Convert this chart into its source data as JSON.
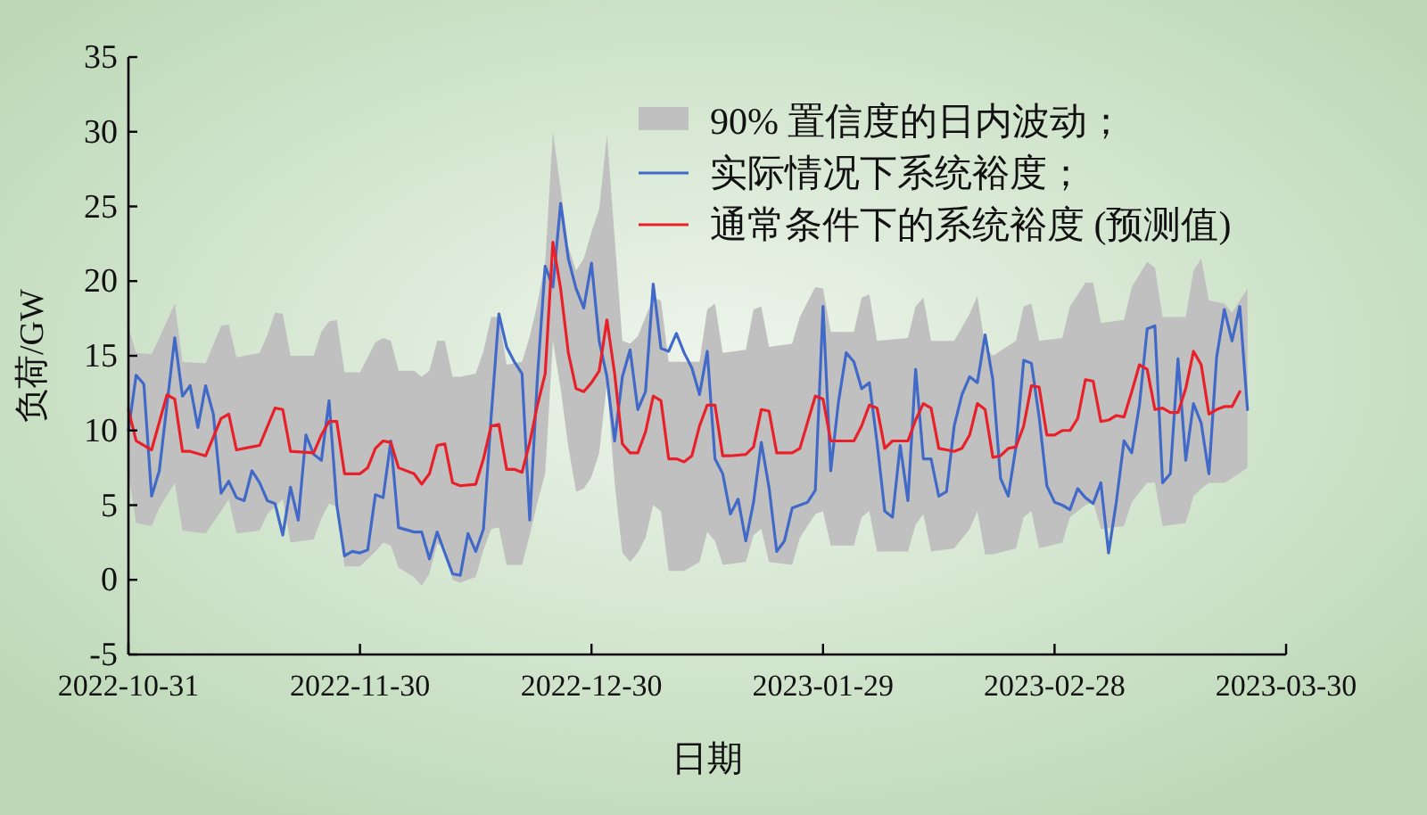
{
  "chart_data": {
    "type": "line",
    "xlabel": "日期",
    "ylabel": "负荷/GW",
    "xlim": [
      "2022-10-31",
      "2023-03-30"
    ],
    "xticks": [
      "2022-10-31",
      "2022-11-30",
      "2022-12-30",
      "2023-01-29",
      "2023-02-28",
      "2023-03-30"
    ],
    "ylim": [
      -5,
      35
    ],
    "yticks": [
      -5,
      0,
      5,
      10,
      15,
      20,
      25,
      30,
      35
    ],
    "legend": "top right",
    "series": [
      {
        "name": "90% 置信度的日内波动；",
        "type": "area",
        "color": "#c0c0c0",
        "values": [
          null,
          null,
          null,
          null,
          null,
          null,
          null,
          null,
          null,
          null,
          null,
          null,
          null,
          null,
          null,
          null,
          null,
          null,
          null,
          null,
          null,
          null,
          null,
          null,
          null,
          null,
          null,
          null,
          null,
          null,
          null,
          null,
          null,
          null,
          null,
          null,
          null,
          null,
          null,
          null,
          null,
          null,
          null,
          null,
          null,
          null,
          null,
          null,
          null,
          null,
          null,
          null,
          null,
          null,
          null,
          null,
          null,
          null,
          null,
          null,
          null,
          null,
          null,
          null,
          null,
          null,
          null,
          null,
          null,
          null,
          null,
          null,
          null,
          null,
          null,
          null,
          null,
          null,
          null,
          null,
          null,
          null,
          null,
          null,
          null,
          null,
          null,
          null,
          null,
          null,
          null,
          null,
          null,
          null,
          null,
          null,
          null,
          null,
          null,
          null,
          null,
          null,
          null,
          null,
          null
        ],
        "x": [
          "2022-10-31",
          "2022-11-01",
          "2022-11-03",
          "2022-11-04",
          "2022-11-06",
          "2022-11-07",
          "2022-11-10",
          "2022-11-12",
          "2022-11-13",
          "2022-11-14",
          "2022-11-17",
          "2022-11-18",
          "2022-11-19",
          "2022-11-20",
          "2022-11-21",
          "2022-11-24",
          "2022-11-25",
          "2022-11-26",
          "2022-11-27",
          "2022-11-28",
          "2022-11-30",
          "2022-12-02",
          "2022-12-03",
          "2022-12-04",
          "2022-12-05",
          "2022-12-07",
          "2022-12-08",
          "2022-12-09",
          "2022-12-10",
          "2022-12-11",
          "2022-12-12",
          "2022-12-13",
          "2022-12-15",
          "2022-12-16",
          "2022-12-17",
          "2022-12-18",
          "2022-12-19",
          "2022-12-21",
          "2022-12-22",
          "2022-12-23",
          "2022-12-24",
          "2022-12-25",
          "2022-12-26",
          "2022-12-27",
          "2022-12-28",
          "2022-12-29",
          "2022-12-30",
          "2022-12-31",
          "2023-01-01",
          "2023-01-02",
          "2023-01-03",
          "2023-01-04",
          "2023-01-05",
          "2023-01-06",
          "2023-01-07",
          "2023-01-08",
          "2023-01-09",
          "2023-01-11",
          "2023-01-13",
          "2023-01-14",
          "2023-01-15",
          "2023-01-16",
          "2023-01-19",
          "2023-01-20",
          "2023-01-21",
          "2023-01-22",
          "2023-01-25",
          "2023-01-26",
          "2023-01-28",
          "2023-01-29",
          "2023-01-30",
          "2023-02-02",
          "2023-02-03",
          "2023-02-04",
          "2023-02-05",
          "2023-02-09",
          "2023-02-10",
          "2023-02-11",
          "2023-02-12",
          "2023-02-15",
          "2023-02-17",
          "2023-02-18",
          "2023-02-19",
          "2023-02-20",
          "2023-02-23",
          "2023-02-24",
          "2023-02-25",
          "2023-02-26",
          "2023-03-01",
          "2023-03-02",
          "2023-03-04",
          "2023-03-05",
          "2023-03-06",
          "2023-03-09",
          "2023-03-10",
          "2023-03-12",
          "2023-03-13",
          "2023-03-14",
          "2023-03-17",
          "2023-03-18",
          "2023-03-19",
          "2023-03-20",
          "2023-03-22",
          "2023-03-23",
          "2023-03-25"
        ],
        "upper": [
          16.9,
          15.2,
          15.1,
          16.2,
          18.5,
          14.6,
          14.5,
          17.0,
          17.1,
          14.9,
          15.2,
          16.4,
          17.9,
          17.8,
          15.0,
          15.0,
          16.6,
          17.3,
          17.4,
          13.9,
          13.9,
          15.9,
          16.2,
          16.0,
          14.0,
          14.0,
          13.6,
          14.0,
          16.0,
          16.0,
          13.6,
          13.6,
          13.8,
          15.3,
          17.6,
          17.6,
          14.4,
          14.6,
          16.3,
          18.5,
          21.3,
          30.0,
          26.2,
          22.3,
          20.7,
          21.5,
          23.3,
          24.8,
          29.8,
          22.9,
          16.0,
          15.8,
          16.3,
          17.6,
          18.9,
          18.7,
          14.6,
          14.6,
          14.6,
          18.1,
          18.5,
          15.2,
          15.4,
          18.1,
          18.3,
          15.6,
          15.8,
          17.6,
          19.6,
          19.5,
          16.6,
          16.6,
          18.9,
          19.1,
          16.0,
          16.2,
          18.3,
          18.9,
          16.0,
          16.0,
          17.8,
          19.0,
          15.6,
          15.0,
          16.0,
          18.3,
          18.5,
          16.0,
          16.2,
          18.3,
          19.9,
          19.9,
          17.2,
          17.4,
          19.6,
          21.3,
          20.9,
          17.6,
          17.6,
          20.7,
          21.5,
          18.7,
          18.5,
          17.9,
          19.5
        ],
        "lower": [
          7.1,
          3.8,
          3.6,
          4.8,
          6.5,
          3.3,
          3.1,
          4.6,
          5.4,
          3.1,
          3.3,
          4.4,
          4.9,
          5.4,
          2.5,
          2.7,
          4.1,
          5.1,
          4.9,
          0.9,
          0.9,
          1.9,
          2.5,
          2.3,
          0.8,
          0.2,
          -0.4,
          0.4,
          2.4,
          2.2,
          0.0,
          -0.2,
          0.2,
          2.0,
          3.4,
          3.5,
          1.0,
          1.0,
          3.0,
          5.2,
          7.1,
          16.0,
          12.8,
          8.9,
          5.9,
          6.1,
          6.9,
          8.5,
          13.2,
          6.5,
          1.8,
          1.2,
          1.8,
          2.8,
          5.0,
          4.6,
          0.6,
          0.6,
          1.2,
          3.2,
          2.6,
          1.0,
          1.2,
          3.0,
          3.4,
          1.2,
          1.0,
          2.8,
          4.4,
          4.6,
          2.3,
          2.3,
          4.2,
          4.6,
          1.9,
          1.9,
          3.7,
          4.4,
          1.9,
          2.1,
          3.4,
          4.6,
          1.7,
          1.7,
          2.1,
          4.2,
          4.6,
          2.1,
          2.5,
          4.2,
          5.0,
          5.2,
          3.4,
          3.6,
          5.2,
          6.5,
          6.5,
          3.6,
          3.8,
          5.6,
          6.1,
          6.5,
          6.5,
          6.8,
          7.5
        ]
      },
      {
        "name": "实际情况下系统裕度；",
        "color": "#4169c8",
        "x": [
          "2022-10-31",
          "2022-11-01",
          "2022-11-02",
          "2022-11-03",
          "2022-11-04",
          "2022-11-06",
          "2022-11-07",
          "2022-11-08",
          "2022-11-09",
          "2022-11-10",
          "2022-11-11",
          "2022-11-12",
          "2022-11-13",
          "2022-11-14",
          "2022-11-15",
          "2022-11-16",
          "2022-11-17",
          "2022-11-18",
          "2022-11-19",
          "2022-11-20",
          "2022-11-21",
          "2022-11-22",
          "2022-11-23",
          "2022-11-24",
          "2022-11-25",
          "2022-11-26",
          "2022-11-27",
          "2022-11-28",
          "2022-11-29",
          "2022-11-30",
          "2022-12-01",
          "2022-12-02",
          "2022-12-03",
          "2022-12-04",
          "2022-12-05",
          "2022-12-07",
          "2022-12-08",
          "2022-12-09",
          "2022-12-10",
          "2022-12-11",
          "2022-12-12",
          "2022-12-13",
          "2022-12-14",
          "2022-12-15",
          "2022-12-16",
          "2022-12-17",
          "2022-12-18",
          "2022-12-19",
          "2022-12-20",
          "2022-12-21",
          "2022-12-22",
          "2022-12-23",
          "2022-12-24",
          "2022-12-25",
          "2022-12-26",
          "2022-12-27",
          "2022-12-28",
          "2022-12-29",
          "2022-12-30",
          "2022-12-31",
          "2023-01-01",
          "2023-01-02",
          "2023-01-03",
          "2023-01-04",
          "2023-01-05",
          "2023-01-06",
          "2023-01-07",
          "2023-01-08",
          "2023-01-09",
          "2023-01-10",
          "2023-01-11",
          "2023-01-12",
          "2023-01-13",
          "2023-01-14",
          "2023-01-15",
          "2023-01-16",
          "2023-01-17",
          "2023-01-18",
          "2023-01-19",
          "2023-01-20",
          "2023-01-21",
          "2023-01-22",
          "2023-01-23",
          "2023-01-24",
          "2023-01-25",
          "2023-01-26",
          "2023-01-27",
          "2023-01-28",
          "2023-01-29",
          "2023-01-30",
          "2023-01-31",
          "2023-02-01",
          "2023-02-02",
          "2023-02-03",
          "2023-02-04",
          "2023-02-05",
          "2023-02-06",
          "2023-02-07",
          "2023-02-08",
          "2023-02-09",
          "2023-02-10",
          "2023-02-11",
          "2023-02-12",
          "2023-02-13",
          "2023-02-14",
          "2023-02-15",
          "2023-02-16",
          "2023-02-17",
          "2023-02-18",
          "2023-02-19",
          "2023-02-20",
          "2023-02-21",
          "2023-02-22",
          "2023-02-23",
          "2023-02-24",
          "2023-02-25",
          "2023-02-26",
          "2023-02-27",
          "2023-02-28",
          "2023-03-01",
          "2023-03-02",
          "2023-03-03",
          "2023-03-04",
          "2023-03-05",
          "2023-03-06",
          "2023-03-07",
          "2023-03-08",
          "2023-03-09",
          "2023-03-10",
          "2023-03-11",
          "2023-03-12",
          "2023-03-13",
          "2023-03-14",
          "2023-03-15",
          "2023-03-16",
          "2023-03-17",
          "2023-03-18",
          "2023-03-19",
          "2023-03-20",
          "2023-03-21",
          "2023-03-22",
          "2023-03-23",
          "2023-03-24",
          "2023-03-25"
        ],
        "values": [
          10.0,
          13.7,
          13.1,
          5.6,
          7.3,
          16.2,
          12.3,
          13.0,
          10.2,
          13.0,
          11.1,
          5.8,
          6.6,
          5.5,
          5.3,
          7.3,
          6.5,
          5.3,
          5.1,
          3.0,
          6.2,
          4.0,
          9.7,
          8.4,
          8.0,
          12.0,
          5.0,
          1.6,
          1.9,
          1.8,
          2.0,
          5.7,
          5.5,
          9.3,
          3.5,
          3.2,
          3.2,
          1.4,
          3.2,
          1.8,
          0.4,
          0.3,
          3.1,
          1.9,
          3.4,
          10.9,
          17.8,
          15.6,
          14.6,
          13.8,
          4.0,
          13.6,
          21.0,
          19.6,
          25.2,
          21.5,
          19.5,
          18.2,
          21.2,
          16.0,
          13.6,
          9.3,
          13.6,
          15.4,
          11.4,
          12.6,
          19.8,
          15.5,
          15.3,
          16.5,
          15.2,
          14.2,
          12.4,
          15.3,
          8.1,
          7.1,
          4.4,
          5.4,
          2.6,
          5.2,
          9.2,
          6.2,
          1.9,
          2.6,
          4.8,
          5.0,
          5.2,
          6.0,
          18.3,
          7.3,
          11.9,
          15.2,
          14.6,
          12.8,
          13.2,
          9.2,
          4.6,
          4.2,
          9.0,
          5.3,
          14.1,
          8.1,
          8.1,
          5.6,
          5.9,
          10.3,
          12.4,
          13.6,
          13.2,
          16.4,
          13.4,
          6.8,
          5.6,
          8.9,
          14.7,
          14.5,
          10.9,
          6.3,
          5.2,
          5.0,
          4.7,
          6.1,
          5.5,
          5.1,
          6.5,
          1.8,
          5.2,
          9.3,
          8.5,
          11.7,
          16.8,
          17.0,
          6.5,
          7.1,
          14.8,
          8.0,
          11.8,
          10.5,
          7.1,
          14.9,
          18.1,
          16.0,
          18.3,
          11.4
        ]
      },
      {
        "name": "通常条件下的系统裕度 (预测值)",
        "color": "#e8202a",
        "x": [
          "2022-10-31",
          "2022-11-01",
          "2022-11-03",
          "2022-11-05",
          "2022-11-06",
          "2022-11-07",
          "2022-11-08",
          "2022-11-10",
          "2022-11-12",
          "2022-11-13",
          "2022-11-14",
          "2022-11-16",
          "2022-11-17",
          "2022-11-19",
          "2022-11-20",
          "2022-11-21",
          "2022-11-24",
          "2022-11-25",
          "2022-11-26",
          "2022-11-27",
          "2022-11-28",
          "2022-11-30",
          "2022-12-01",
          "2022-12-02",
          "2022-12-03",
          "2022-12-04",
          "2022-12-05",
          "2022-12-07",
          "2022-12-08",
          "2022-12-09",
          "2022-12-10",
          "2022-12-11",
          "2022-12-12",
          "2022-12-13",
          "2022-12-15",
          "2022-12-16",
          "2022-12-17",
          "2022-12-18",
          "2022-12-19",
          "2022-12-20",
          "2022-12-21",
          "2022-12-22",
          "2022-12-23",
          "2022-12-24",
          "2022-12-25",
          "2022-12-26",
          "2022-12-27",
          "2022-12-28",
          "2022-12-29",
          "2022-12-30",
          "2022-12-31",
          "2023-01-01",
          "2023-01-02",
          "2023-01-03",
          "2023-01-04",
          "2023-01-05",
          "2023-01-06",
          "2023-01-07",
          "2023-01-08",
          "2023-01-09",
          "2023-01-10",
          "2023-01-11",
          "2023-01-12",
          "2023-01-13",
          "2023-01-14",
          "2023-01-15",
          "2023-01-16",
          "2023-01-17",
          "2023-01-19",
          "2023-01-20",
          "2023-01-21",
          "2023-01-22",
          "2023-01-23",
          "2023-01-25",
          "2023-01-26",
          "2023-01-28",
          "2023-01-29",
          "2023-01-30",
          "2023-02-01",
          "2023-02-02",
          "2023-02-03",
          "2023-02-04",
          "2023-02-05",
          "2023-02-06",
          "2023-02-07",
          "2023-02-08",
          "2023-02-09",
          "2023-02-10",
          "2023-02-11",
          "2023-02-12",
          "2023-02-13",
          "2023-02-14",
          "2023-02-15",
          "2023-02-16",
          "2023-02-17",
          "2023-02-18",
          "2023-02-19",
          "2023-02-20",
          "2023-02-21",
          "2023-02-22",
          "2023-02-23",
          "2023-02-24",
          "2023-02-25",
          "2023-02-26",
          "2023-02-27",
          "2023-02-28",
          "2023-03-01",
          "2023-03-02",
          "2023-03-03",
          "2023-03-04",
          "2023-03-05",
          "2023-03-06",
          "2023-03-07",
          "2023-03-08",
          "2023-03-09",
          "2023-03-10",
          "2023-03-11",
          "2023-03-12",
          "2023-03-13",
          "2023-03-14",
          "2023-03-15",
          "2023-03-16",
          "2023-03-17",
          "2023-03-18",
          "2023-03-19",
          "2023-03-20",
          "2023-03-21",
          "2023-03-22",
          "2023-03-23",
          "2023-03-24"
        ],
        "values": [
          11.4,
          9.3,
          8.7,
          12.4,
          12.1,
          8.6,
          8.6,
          8.3,
          10.8,
          11.1,
          8.7,
          8.9,
          9.0,
          11.5,
          11.4,
          8.6,
          8.5,
          9.7,
          10.6,
          10.6,
          7.1,
          7.1,
          7.5,
          8.8,
          9.3,
          9.2,
          7.5,
          7.1,
          6.4,
          7.1,
          9.0,
          9.1,
          6.5,
          6.3,
          6.4,
          8.1,
          10.3,
          10.4,
          7.4,
          7.4,
          7.2,
          9.2,
          11.7,
          13.8,
          22.6,
          19.5,
          15.2,
          12.8,
          12.6,
          13.2,
          14.0,
          17.4,
          13.8,
          9.1,
          8.5,
          8.5,
          9.9,
          12.3,
          12.0,
          8.1,
          8.1,
          7.9,
          8.3,
          10.3,
          11.7,
          11.7,
          8.3,
          8.3,
          8.4,
          8.9,
          11.4,
          11.3,
          8.5,
          8.5,
          8.8,
          12.3,
          12.1,
          9.3,
          9.3,
          9.3,
          10.3,
          11.7,
          11.5,
          8.8,
          9.3,
          9.3,
          9.3,
          10.7,
          11.8,
          11.5,
          8.8,
          8.7,
          8.6,
          8.8,
          9.7,
          11.8,
          11.4,
          8.2,
          8.3,
          8.8,
          8.9,
          10.3,
          13.0,
          12.9,
          9.7,
          9.7,
          10.0,
          10.0,
          10.8,
          13.4,
          13.3,
          10.6,
          10.7,
          11.0,
          10.9,
          12.6,
          14.4,
          14.1,
          11.4,
          11.5,
          11.2,
          11.2,
          12.8,
          15.3,
          14.4,
          11.1,
          11.4,
          11.6,
          11.6,
          12.6
        ]
      }
    ]
  }
}
